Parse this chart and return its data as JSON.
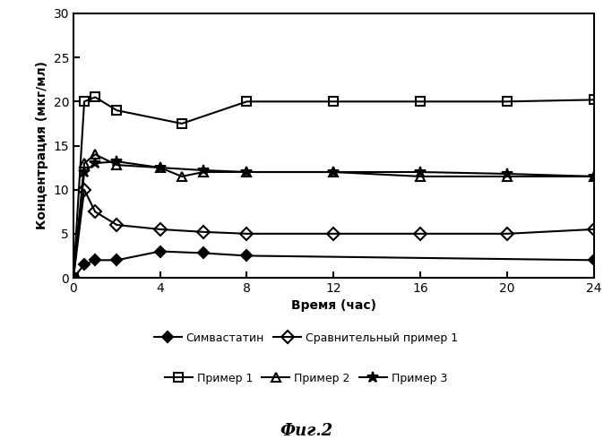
{
  "series": {
    "simvastatin": {
      "label": "Симвастатин",
      "x": [
        0,
        0.5,
        1,
        2,
        4,
        6,
        8,
        24
      ],
      "y": [
        0,
        1.5,
        2.0,
        2.0,
        3.0,
        2.8,
        2.5,
        2.0
      ],
      "marker": "D",
      "fillstyle": "full",
      "color": "#000000",
      "linestyle": "-",
      "markersize": 6
    },
    "primer1": {
      "label": "Пример 1",
      "x": [
        0,
        0.5,
        1,
        2,
        5,
        8,
        12,
        16,
        20,
        24
      ],
      "y": [
        0,
        20.0,
        20.5,
        19.0,
        17.5,
        20.0,
        20.0,
        20.0,
        20.0,
        20.2
      ],
      "marker": "s",
      "fillstyle": "none",
      "color": "#000000",
      "linestyle": "-",
      "markersize": 7
    },
    "sravnitelny": {
      "label": "Сравнительный пример 1",
      "x": [
        0,
        0.5,
        1,
        2,
        4,
        6,
        8,
        12,
        16,
        20,
        24
      ],
      "y": [
        0,
        10.0,
        7.5,
        6.0,
        5.5,
        5.2,
        5.0,
        5.0,
        5.0,
        5.0,
        5.5
      ],
      "marker": "D",
      "fillstyle": "none",
      "color": "#000000",
      "linestyle": "-",
      "markersize": 7
    },
    "primer2": {
      "label": "Пример 2",
      "x": [
        0,
        0.5,
        1,
        2,
        4,
        5,
        6,
        8,
        12,
        16,
        20,
        24
      ],
      "y": [
        0,
        13.0,
        14.0,
        12.8,
        12.5,
        11.5,
        12.0,
        12.0,
        12.0,
        11.5,
        11.5,
        11.5
      ],
      "marker": "^",
      "fillstyle": "none",
      "color": "#000000",
      "linestyle": "-",
      "markersize": 7
    },
    "primer3": {
      "label": "Пример 3",
      "x": [
        0,
        0.5,
        1,
        2,
        4,
        6,
        8,
        12,
        16,
        20,
        24
      ],
      "y": [
        0,
        12.0,
        13.0,
        13.2,
        12.5,
        12.2,
        12.0,
        12.0,
        12.0,
        11.8,
        11.5
      ],
      "marker": "*",
      "fillstyle": "full",
      "color": "#000000",
      "linestyle": "-",
      "markersize": 9
    }
  },
  "xlabel": "Время (час)",
  "ylabel": "Концентрация (мкг/мл)",
  "xlim": [
    0,
    24
  ],
  "ylim": [
    0,
    30
  ],
  "xticks": [
    0,
    4,
    8,
    12,
    16,
    20,
    24
  ],
  "yticks": [
    0,
    5,
    10,
    15,
    20,
    25,
    30
  ],
  "caption": "Фиг.2",
  "background_color": "#ffffff",
  "legend_row1": [
    "Симвастатин",
    "Сравнительный пример 1"
  ],
  "legend_row2": [
    "Пример 1",
    "Пример 2",
    "Пример 3"
  ]
}
